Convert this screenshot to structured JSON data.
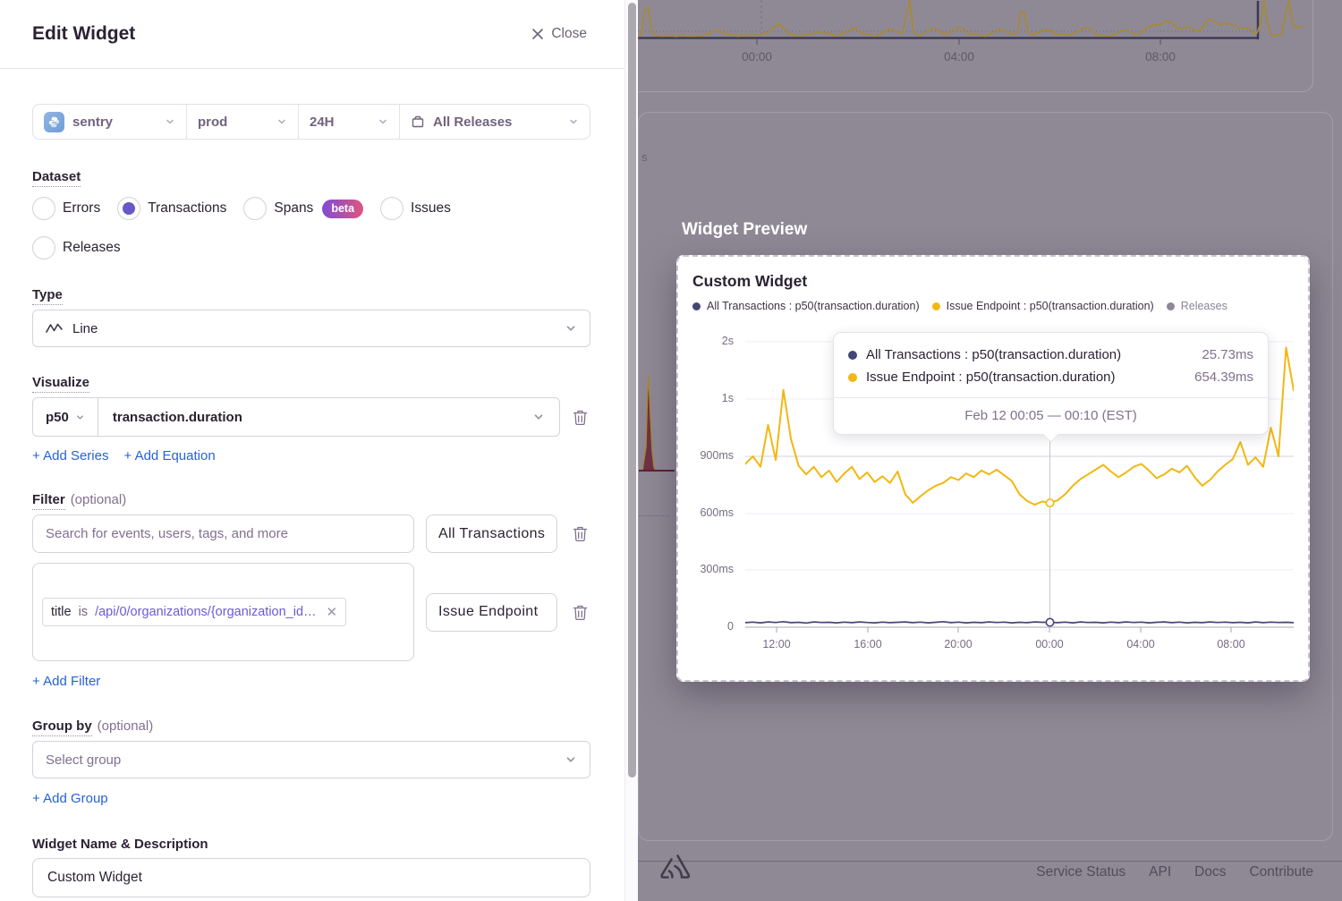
{
  "drawer": {
    "title": "Edit Widget",
    "close": {
      "label": "Close"
    },
    "page_filters": {
      "project": "sentry",
      "environment": "prod",
      "period": "24H",
      "releases": "All Releases"
    },
    "dataset": {
      "label": "Dataset",
      "options": [
        {
          "label": "Errors",
          "selected": false
        },
        {
          "label": "Transactions",
          "selected": true
        },
        {
          "label": "Spans",
          "selected": false,
          "badge": "beta"
        },
        {
          "label": "Issues",
          "selected": false
        },
        {
          "label": "Releases",
          "selected": false
        }
      ]
    },
    "type": {
      "label": "Type",
      "value": "Line"
    },
    "visualize": {
      "label": "Visualize",
      "aggregate": "p50",
      "field": "transaction.duration",
      "add_series": "+ Add Series",
      "add_equation": "+ Add Equation"
    },
    "filter": {
      "label": "Filter",
      "optional": "(optional)",
      "search_placeholder": "Search for events, users, tags, and more",
      "rows": [
        {
          "legend": "All Transactions"
        },
        {
          "legend": "Issue Endpoint",
          "token": {
            "key": "title",
            "operator": "is",
            "value": "/api/0/organizations/{organization_id…"
          }
        }
      ],
      "add_filter": "+ Add Filter"
    },
    "group_by": {
      "label": "Group by",
      "optional": "(optional)",
      "placeholder": "Select group",
      "add_group": "+ Add Group"
    },
    "widget_name": {
      "label": "Widget Name & Description",
      "value": "Custom Widget"
    }
  },
  "preview": {
    "heading": "Widget Preview",
    "card_title": "Custom Widget",
    "legend": [
      {
        "label": "All Transactions : p50(transaction.duration)",
        "color": "#444674"
      },
      {
        "label": "Issue Endpoint : p50(transaction.duration)",
        "color": "#F2B712"
      },
      {
        "label": "Releases",
        "color": "#8D8799"
      }
    ],
    "tooltip": {
      "rows": [
        {
          "label": "All Transactions : p50(transaction.duration)",
          "value": "25.73ms",
          "color": "#444674"
        },
        {
          "label": "Issue Endpoint : p50(transaction.duration)",
          "value": "654.39ms",
          "color": "#F2B712"
        }
      ],
      "timestamp": "Feb 12 00:05 — 00:10 (EST)"
    }
  },
  "chart_data": {
    "type": "line",
    "title": "Custom Widget",
    "x_ticks": [
      "12:00",
      "16:00",
      "20:00",
      "00:00",
      "04:00",
      "08:00"
    ],
    "y_ticks": [
      "2s",
      "1s",
      "900ms",
      "600ms",
      "300ms",
      "0"
    ],
    "unit": "ms",
    "highlight_index": 40,
    "highlight_label": "Feb 12 00:05 — 00:10 (EST)",
    "series": [
      {
        "name": "All Transactions : p50(transaction.duration)",
        "color": "#444674",
        "values": [
          24,
          27,
          23,
          28,
          25,
          29,
          24,
          26,
          22,
          28,
          25,
          26,
          23,
          27,
          24,
          28,
          25,
          23,
          27,
          24,
          26,
          28,
          24,
          27,
          23,
          26,
          29,
          24,
          27,
          23,
          26,
          24,
          28,
          25,
          27,
          23,
          26,
          24,
          28,
          26,
          25.73,
          24,
          27,
          23,
          28,
          25,
          26,
          23,
          27,
          24,
          28,
          25,
          27,
          23,
          26,
          28,
          24,
          27,
          23,
          26,
          24,
          28,
          25,
          27,
          24,
          26,
          23,
          28,
          24,
          27,
          25,
          26,
          24
        ]
      },
      {
        "name": "Issue Endpoint : p50(transaction.duration)",
        "color": "#F2B712",
        "values": [
          860,
          900,
          845,
          955,
          880,
          1160,
          930,
          850,
          805,
          845,
          790,
          825,
          765,
          810,
          845,
          780,
          815,
          765,
          795,
          760,
          820,
          700,
          655,
          690,
          720,
          745,
          760,
          790,
          775,
          810,
          790,
          825,
          805,
          830,
          800,
          770,
          700,
          665,
          645,
          662,
          654.39,
          668,
          700,
          745,
          780,
          805,
          830,
          855,
          820,
          790,
          815,
          845,
          860,
          825,
          785,
          805,
          835,
          815,
          850,
          790,
          745,
          775,
          820,
          855,
          885,
          925,
          855,
          895,
          845,
          950,
          900,
          1900,
          1150
        ]
      }
    ]
  },
  "background": {
    "top_chart": {
      "x_ticks": [
        "00:00",
        "04:00",
        "08:00"
      ]
    },
    "partial_axis_label": "s",
    "footer": {
      "links": [
        "Service Status",
        "API",
        "Docs",
        "Contribute"
      ]
    }
  }
}
